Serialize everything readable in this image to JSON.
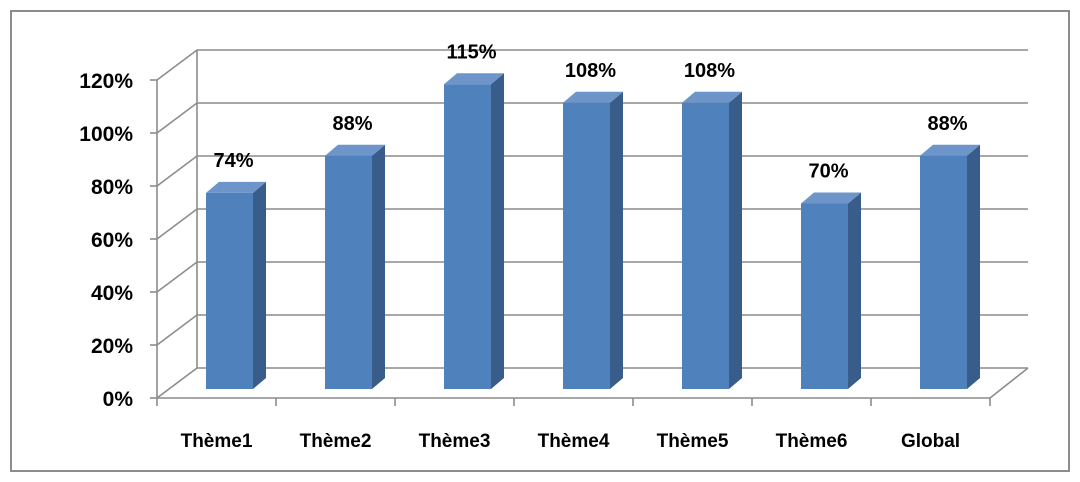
{
  "chart_data": {
    "type": "bar",
    "style": "3d-column",
    "categories": [
      "Thème1",
      "Thème2",
      "Thème3",
      "Thème4",
      "Thème5",
      "Thème6",
      "Global"
    ],
    "values": [
      74,
      88,
      115,
      108,
      108,
      70,
      88
    ],
    "data_labels": [
      "74%",
      "88%",
      "115%",
      "108%",
      "108%",
      "70%",
      "88%"
    ],
    "y_ticks": [
      "0%",
      "20%",
      "40%",
      "60%",
      "80%",
      "100%",
      "120%"
    ],
    "ylim": [
      0,
      120
    ],
    "grid": true,
    "legend": "none",
    "title": "",
    "xlabel": "",
    "ylabel": ""
  },
  "colors": {
    "bar_front": "#4f81bd",
    "bar_side": "#385d8a",
    "bar_top": "#6d95c9",
    "gridline": "#8c8c8c",
    "frame": "#8c8c8c"
  }
}
